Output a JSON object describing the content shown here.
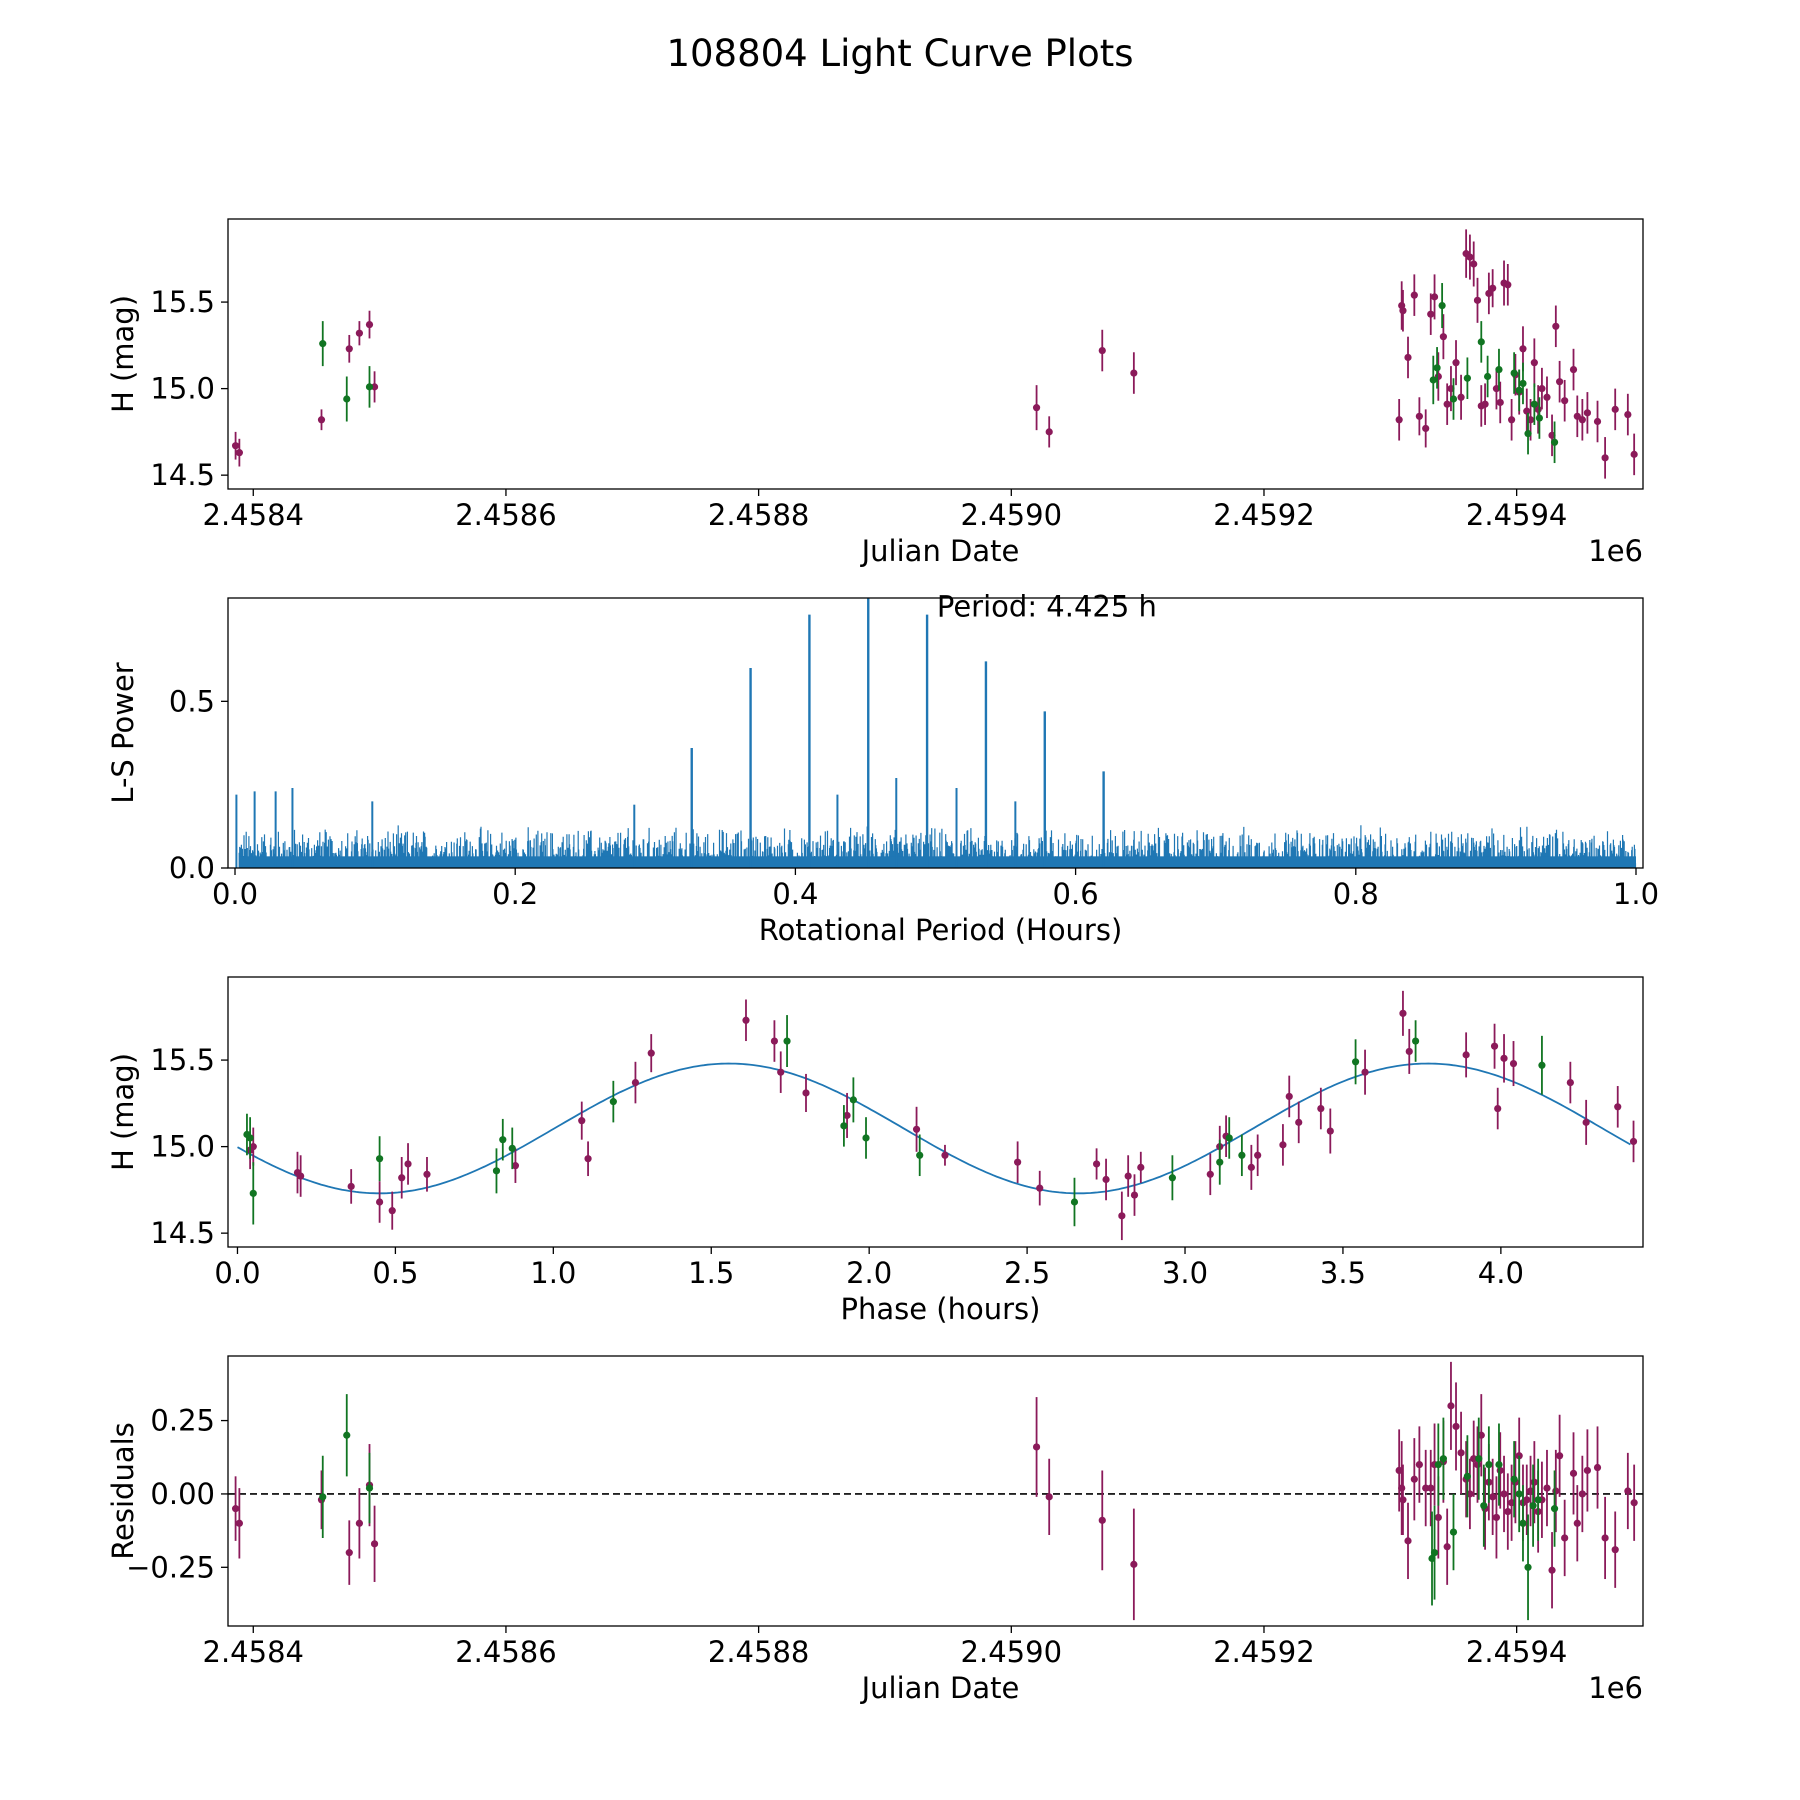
{
  "figure_title": "108804 Light Curve Plots",
  "colors": {
    "series_a": "#8B1A5A",
    "series_b": "#117522",
    "fit_line": "#1f77b4",
    "periodogram": "#1f77b4",
    "zero_line": "#000000"
  },
  "chart_data": [
    {
      "type": "scatter",
      "name": "light-curve",
      "xlabel": "Julian Date",
      "ylabel": "H (mag)",
      "x_offset_label": "1e6",
      "xlim": [
        2.45838,
        2.4595
      ],
      "ylim": [
        14.42,
        15.98
      ],
      "xticks": [
        2.4584,
        2.4586,
        2.4588,
        2.459,
        2.4592,
        2.4594
      ],
      "xtick_labels": [
        "2.4584",
        "2.4586",
        "2.4588",
        "2.4590",
        "2.4592",
        "2.4594"
      ],
      "yticks": [
        14.5,
        15.0,
        15.5
      ],
      "ytick_labels": [
        "14.5",
        "15.0",
        "15.5"
      ],
      "series": [
        {
          "name": "purple",
          "color": "#8B1A5A",
          "x": [
            2.458386,
            2.458389,
            2.458454,
            2.458476,
            2.458484,
            2.458492,
            2.458496,
            2.45902,
            2.45903,
            2.459072,
            2.459097,
            2.459307,
            2.459309,
            2.45931,
            2.459314,
            2.459319,
            2.459323,
            2.459328,
            2.459332,
            2.459335,
            2.459338,
            2.459342,
            2.459345,
            2.459348,
            2.459352,
            2.459356,
            2.45936,
            2.459363,
            2.459366,
            2.459369,
            2.459372,
            2.459375,
            2.459378,
            2.459381,
            2.459384,
            2.459387,
            2.45939,
            2.459393,
            2.459396,
            2.459399,
            2.459402,
            2.459405,
            2.459408,
            2.459411,
            2.459414,
            2.459417,
            2.45942,
            2.459424,
            2.459428,
            2.459431,
            2.459434,
            2.459438,
            2.459445,
            2.459448,
            2.459452,
            2.459456,
            2.459464,
            2.45947,
            2.459478,
            2.459488,
            2.459493
          ],
          "y": [
            14.67,
            14.63,
            14.82,
            15.23,
            15.32,
            15.37,
            15.01,
            14.89,
            14.75,
            15.22,
            15.09,
            14.82,
            15.48,
            15.45,
            15.18,
            15.54,
            14.84,
            14.77,
            15.43,
            15.53,
            15.07,
            15.3,
            14.91,
            15.0,
            15.15,
            14.95,
            15.78,
            15.76,
            15.72,
            15.51,
            14.9,
            14.91,
            15.55,
            15.58,
            15.0,
            14.92,
            15.61,
            15.6,
            14.82,
            15.08,
            14.98,
            15.23,
            14.87,
            14.82,
            15.15,
            14.88,
            15.0,
            14.95,
            14.73,
            15.36,
            15.04,
            14.93,
            15.11,
            14.84,
            14.82,
            14.86,
            14.81,
            14.6,
            14.88,
            14.85,
            14.62
          ],
          "err": [
            0.08,
            0.08,
            0.06,
            0.08,
            0.07,
            0.08,
            0.09,
            0.13,
            0.09,
            0.12,
            0.12,
            0.12,
            0.14,
            0.12,
            0.12,
            0.12,
            0.11,
            0.11,
            0.12,
            0.13,
            0.14,
            0.13,
            0.12,
            0.13,
            0.13,
            0.13,
            0.14,
            0.13,
            0.13,
            0.13,
            0.12,
            0.12,
            0.12,
            0.11,
            0.12,
            0.12,
            0.13,
            0.12,
            0.12,
            0.12,
            0.13,
            0.13,
            0.13,
            0.12,
            0.14,
            0.14,
            0.12,
            0.12,
            0.12,
            0.12,
            0.12,
            0.12,
            0.12,
            0.12,
            0.12,
            0.12,
            0.12,
            0.12,
            0.12,
            0.12,
            0.12
          ]
        },
        {
          "name": "green",
          "color": "#117522",
          "x": [
            2.458455,
            2.458474,
            2.458492,
            2.459334,
            2.459337,
            2.459341,
            2.45935,
            2.459361,
            2.459372,
            2.459377,
            2.459386,
            2.459398,
            2.459402,
            2.459405,
            2.459409,
            2.459414,
            2.459418,
            2.45943
          ],
          "y": [
            15.26,
            14.94,
            15.01,
            15.05,
            15.12,
            15.48,
            14.94,
            15.06,
            15.27,
            15.07,
            15.11,
            15.09,
            14.99,
            15.03,
            14.74,
            14.91,
            14.83,
            14.69
          ],
          "err": [
            0.13,
            0.13,
            0.12,
            0.14,
            0.12,
            0.13,
            0.12,
            0.12,
            0.12,
            0.12,
            0.12,
            0.12,
            0.12,
            0.12,
            0.12,
            0.12,
            0.12,
            0.12
          ]
        }
      ]
    },
    {
      "type": "line",
      "name": "periodogram",
      "xlabel": "Rotational Period (Hours)",
      "ylabel": "L-S Power",
      "xlim": [
        -0.005,
        1.005
      ],
      "ylim": [
        0,
        0.81
      ],
      "xticks": [
        0.0,
        0.2,
        0.4,
        0.6,
        0.8,
        1.0
      ],
      "xtick_labels": [
        "0.0",
        "0.2",
        "0.4",
        "0.6",
        "0.8",
        "1.0"
      ],
      "yticks": [
        0.0,
        0.5
      ],
      "ytick_labels": [
        "0.0",
        "0.5"
      ],
      "annotation": {
        "text": "Period: 4.425 h",
        "x": 0.501,
        "y": 0.755
      },
      "noise_level": 0.12,
      "peaks": {
        "x": [
          0.326,
          0.368,
          0.41,
          0.452,
          0.494,
          0.536,
          0.578,
          0.62
        ],
        "y": [
          0.36,
          0.6,
          0.76,
          0.81,
          0.76,
          0.62,
          0.47,
          0.29
        ]
      },
      "secondary_peaks": {
        "x": [
          0.001,
          0.014,
          0.029,
          0.041,
          0.098,
          0.285,
          0.43,
          0.472,
          0.515,
          0.557
        ],
        "y": [
          0.22,
          0.23,
          0.23,
          0.24,
          0.2,
          0.19,
          0.22,
          0.27,
          0.24,
          0.2
        ]
      }
    },
    {
      "type": "scatter",
      "name": "phased-light-curve",
      "xlabel": "Phase (hours)",
      "ylabel": "H (mag)",
      "xlim": [
        -0.03,
        4.45
      ],
      "ylim": [
        14.42,
        15.98
      ],
      "xticks": [
        0.0,
        0.5,
        1.0,
        1.5,
        2.0,
        2.5,
        3.0,
        3.5,
        4.0
      ],
      "xtick_labels": [
        "0.0",
        "0.5",
        "1.0",
        "1.5",
        "2.0",
        "2.5",
        "3.0",
        "3.5",
        "4.0"
      ],
      "yticks": [
        14.5,
        15.0,
        15.5
      ],
      "ytick_labels": [
        "14.5",
        "15.0",
        "15.5"
      ],
      "fit": {
        "mean": 15.105,
        "amplitude": 0.375,
        "period": 2.2125,
        "phase_min": 0.45
      },
      "series": [
        {
          "name": "purple",
          "color": "#8B1A5A",
          "x": [
            0.04,
            0.05,
            0.19,
            0.2,
            0.36,
            0.45,
            0.49,
            0.52,
            0.54,
            0.6,
            0.88,
            1.09,
            1.11,
            1.26,
            1.31,
            1.61,
            1.7,
            1.72,
            1.8,
            1.93,
            2.15,
            2.24,
            2.47,
            2.54,
            2.72,
            2.75,
            2.8,
            2.82,
            2.84,
            2.86,
            3.08,
            3.11,
            3.13,
            3.21,
            3.23,
            3.31,
            3.33,
            3.36,
            3.43,
            3.46,
            3.57,
            3.69,
            3.71,
            3.89,
            3.98,
            3.99,
            4.01,
            4.04,
            4.22,
            4.27,
            4.37,
            4.42
          ],
          "y": [
            14.98,
            15.0,
            14.85,
            14.83,
            14.77,
            14.68,
            14.63,
            14.82,
            14.9,
            14.84,
            14.89,
            15.15,
            14.93,
            15.37,
            15.54,
            15.73,
            15.61,
            15.43,
            15.31,
            15.18,
            15.1,
            14.95,
            14.91,
            14.76,
            14.9,
            14.81,
            14.6,
            14.83,
            14.72,
            14.88,
            14.84,
            15.0,
            15.06,
            14.88,
            14.95,
            15.01,
            15.29,
            15.14,
            15.22,
            15.09,
            15.43,
            15.77,
            15.55,
            15.53,
            15.58,
            15.22,
            15.51,
            15.48,
            15.37,
            15.14,
            15.23,
            15.03
          ],
          "err": [
            0.11,
            0.11,
            0.12,
            0.12,
            0.1,
            0.12,
            0.11,
            0.12,
            0.12,
            0.1,
            0.1,
            0.11,
            0.1,
            0.12,
            0.11,
            0.12,
            0.12,
            0.12,
            0.11,
            0.13,
            0.13,
            0.06,
            0.12,
            0.1,
            0.09,
            0.12,
            0.14,
            0.12,
            0.12,
            0.09,
            0.12,
            0.12,
            0.12,
            0.13,
            0.12,
            0.12,
            0.12,
            0.12,
            0.12,
            0.13,
            0.13,
            0.13,
            0.13,
            0.13,
            0.13,
            0.12,
            0.14,
            0.13,
            0.12,
            0.13,
            0.12,
            0.12
          ]
        },
        {
          "name": "green",
          "color": "#117522",
          "x": [
            0.03,
            0.04,
            0.05,
            0.45,
            0.82,
            0.84,
            0.87,
            1.19,
            1.74,
            1.92,
            1.95,
            1.99,
            2.16,
            2.65,
            2.96,
            3.11,
            3.14,
            3.18,
            3.54,
            3.73,
            4.13
          ],
          "y": [
            15.07,
            15.05,
            14.73,
            14.93,
            14.86,
            15.04,
            14.99,
            15.26,
            15.61,
            15.12,
            15.27,
            15.05,
            14.95,
            14.68,
            14.82,
            14.91,
            15.05,
            14.95,
            15.49,
            15.61,
            15.47
          ],
          "err": [
            0.12,
            0.12,
            0.18,
            0.13,
            0.13,
            0.12,
            0.12,
            0.12,
            0.15,
            0.12,
            0.13,
            0.12,
            0.12,
            0.14,
            0.13,
            0.13,
            0.12,
            0.12,
            0.13,
            0.12,
            0.17
          ]
        }
      ]
    },
    {
      "type": "scatter",
      "name": "residuals",
      "xlabel": "Julian Date",
      "ylabel": "Residuals",
      "x_offset_label": "1e6",
      "xlim": [
        2.45838,
        2.4595
      ],
      "ylim": [
        -0.45,
        0.47
      ],
      "xticks": [
        2.4584,
        2.4586,
        2.4588,
        2.459,
        2.4592,
        2.4594
      ],
      "xtick_labels": [
        "2.4584",
        "2.4586",
        "2.4588",
        "2.4590",
        "2.4592",
        "2.4594"
      ],
      "yticks": [
        -0.25,
        0.0,
        0.25
      ],
      "ytick_labels": [
        "−0.25",
        "0.00",
        "0.25"
      ],
      "zero_line": 0.0,
      "series": [
        {
          "name": "purple",
          "color": "#8B1A5A",
          "x": [
            2.458386,
            2.458389,
            2.458454,
            2.458476,
            2.458484,
            2.458492,
            2.458496,
            2.45902,
            2.45903,
            2.459072,
            2.459097,
            2.459307,
            2.459309,
            2.45931,
            2.459314,
            2.459319,
            2.459323,
            2.459328,
            2.459332,
            2.459335,
            2.459338,
            2.459342,
            2.459345,
            2.459348,
            2.459352,
            2.459356,
            2.45936,
            2.459363,
            2.459366,
            2.459369,
            2.459372,
            2.459375,
            2.459378,
            2.459381,
            2.459384,
            2.459387,
            2.45939,
            2.459393,
            2.459396,
            2.459399,
            2.459402,
            2.459405,
            2.459408,
            2.459411,
            2.459414,
            2.459417,
            2.45942,
            2.459424,
            2.459428,
            2.459431,
            2.459434,
            2.459438,
            2.459445,
            2.459448,
            2.459452,
            2.459456,
            2.459464,
            2.45947,
            2.459478,
            2.459488,
            2.459493
          ],
          "y": [
            -0.05,
            -0.1,
            -0.02,
            -0.2,
            -0.1,
            0.03,
            -0.17,
            0.16,
            -0.01,
            -0.09,
            -0.24,
            0.08,
            0.02,
            -0.02,
            -0.16,
            0.05,
            0.1,
            0.02,
            0.02,
            0.1,
            -0.08,
            0.11,
            -0.18,
            0.3,
            0.23,
            0.14,
            0.05,
            0.0,
            0.12,
            0.1,
            0.2,
            -0.05,
            0.04,
            -0.01,
            -0.08,
            0.08,
            0.0,
            -0.06,
            -0.03,
            0.04,
            0.13,
            -0.03,
            -0.02,
            0.01,
            0.04,
            -0.06,
            -0.02,
            0.02,
            -0.26,
            0.01,
            0.13,
            -0.15,
            0.07,
            -0.1,
            0.0,
            0.08,
            0.09,
            -0.15,
            -0.19,
            0.01,
            -0.03
          ],
          "err": [
            0.11,
            0.12,
            0.1,
            0.11,
            0.12,
            0.14,
            0.13,
            0.17,
            0.13,
            0.17,
            0.19,
            0.14,
            0.16,
            0.12,
            0.13,
            0.14,
            0.13,
            0.13,
            0.13,
            0.14,
            0.14,
            0.14,
            0.13,
            0.15,
            0.15,
            0.14,
            0.13,
            0.12,
            0.13,
            0.13,
            0.14,
            0.14,
            0.13,
            0.13,
            0.14,
            0.13,
            0.13,
            0.13,
            0.13,
            0.14,
            0.13,
            0.13,
            0.12,
            0.12,
            0.14,
            0.14,
            0.13,
            0.13,
            0.13,
            0.14,
            0.14,
            0.13,
            0.14,
            0.13,
            0.13,
            0.14,
            0.14,
            0.14,
            0.13,
            0.13,
            0.13
          ]
        },
        {
          "name": "green",
          "color": "#117522",
          "x": [
            2.458455,
            2.458474,
            2.458492,
            2.459333,
            2.459335,
            2.459338,
            2.459342,
            2.45935,
            2.459361,
            2.45937,
            2.459374,
            2.459378,
            2.459386,
            2.459398,
            2.459402,
            2.459405,
            2.459409,
            2.459413,
            2.459417,
            2.45943
          ],
          "y": [
            -0.01,
            0.2,
            0.02,
            -0.22,
            -0.2,
            0.1,
            0.12,
            -0.13,
            0.06,
            0.12,
            -0.04,
            0.1,
            0.1,
            0.05,
            0.0,
            -0.1,
            -0.25,
            -0.04,
            -0.02,
            -0.05
          ],
          "err": [
            0.14,
            0.14,
            0.12,
            0.16,
            0.16,
            0.14,
            0.14,
            0.13,
            0.14,
            0.14,
            0.14,
            0.13,
            0.14,
            0.13,
            0.13,
            0.13,
            0.18,
            0.14,
            0.14,
            0.13
          ]
        }
      ]
    }
  ]
}
